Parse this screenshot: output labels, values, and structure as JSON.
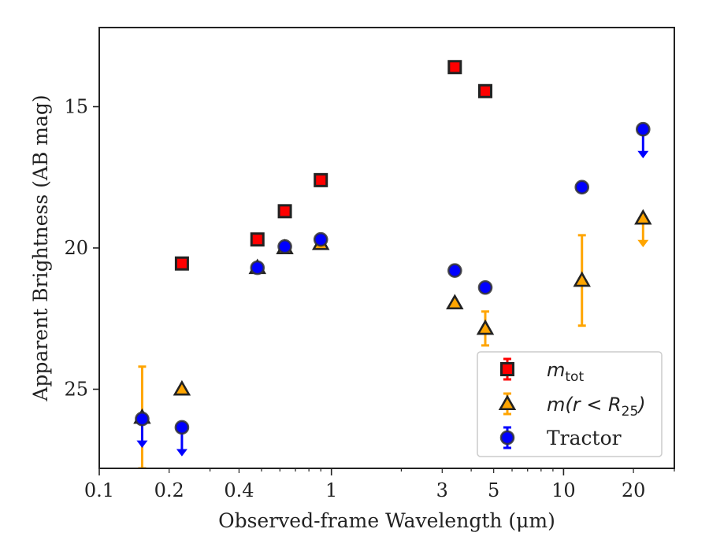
{
  "chart_data": {
    "type": "scatter",
    "title": "",
    "xlabel": "Observed-frame Wavelength (μm)",
    "ylabel": "Apparent Brightness (AB mag)",
    "xscale": "log",
    "xlim": [
      0.1,
      30
    ],
    "ylim": [
      12.2,
      27.8
    ],
    "y_inverted": true,
    "grid": false,
    "legend_position": "lower-right",
    "x_ticks": [
      {
        "value": 0.1,
        "label": "0.1"
      },
      {
        "value": 0.2,
        "label": "0.2"
      },
      {
        "value": 0.4,
        "label": "0.4"
      },
      {
        "value": 1,
        "label": "1"
      },
      {
        "value": 3,
        "label": "3"
      },
      {
        "value": 5,
        "label": "5"
      },
      {
        "value": 10,
        "label": "10"
      },
      {
        "value": 20,
        "label": "20"
      }
    ],
    "y_ticks": [
      {
        "value": 15,
        "label": "15"
      },
      {
        "value": 20,
        "label": "20"
      },
      {
        "value": 25,
        "label": "25"
      }
    ],
    "series": [
      {
        "name": "m_tot",
        "legend_main": "m",
        "legend_sub": "tot",
        "marker": "square",
        "color": "#ff0000",
        "edge_color": "#222222",
        "points": [
          {
            "x": 0.227,
            "y": 20.55
          },
          {
            "x": 0.48,
            "y": 19.7
          },
          {
            "x": 0.63,
            "y": 18.7
          },
          {
            "x": 0.9,
            "y": 17.6
          },
          {
            "x": 3.4,
            "y": 13.6
          },
          {
            "x": 4.6,
            "y": 14.45
          }
        ]
      },
      {
        "name": "m(r < R25)",
        "legend_main": "m(r < R",
        "legend_sub": "25",
        "legend_tail": ")",
        "marker": "triangle",
        "color": "#ffa500",
        "edge_color": "#222222",
        "points": [
          {
            "x": 0.153,
            "y": 26.0,
            "yerr_low": 1.8,
            "yerr_high": 1.8
          },
          {
            "x": 0.227,
            "y": 25.0
          },
          {
            "x": 0.48,
            "y": 20.7
          },
          {
            "x": 0.63,
            "y": 20.0
          },
          {
            "x": 0.9,
            "y": 19.85
          },
          {
            "x": 3.4,
            "y": 21.95
          },
          {
            "x": 4.6,
            "y": 22.85,
            "yerr_low": 0.6,
            "yerr_high": 0.6
          },
          {
            "x": 12.0,
            "y": 21.15,
            "yerr_low": 1.6,
            "yerr_high": 1.6
          },
          {
            "x": 22.0,
            "y": 18.95,
            "upper_limit": true
          }
        ]
      },
      {
        "name": "Tractor",
        "legend_main": "Tractor",
        "marker": "circle",
        "color": "#0000ff",
        "edge_color": "#333333",
        "points": [
          {
            "x": 0.153,
            "y": 26.05,
            "upper_limit": true
          },
          {
            "x": 0.227,
            "y": 26.35,
            "upper_limit": true
          },
          {
            "x": 0.48,
            "y": 20.7
          },
          {
            "x": 0.63,
            "y": 19.95
          },
          {
            "x": 0.9,
            "y": 19.7
          },
          {
            "x": 3.4,
            "y": 20.8
          },
          {
            "x": 4.6,
            "y": 21.4
          },
          {
            "x": 12.0,
            "y": 17.85
          },
          {
            "x": 22.0,
            "y": 15.8,
            "upper_limit": true
          }
        ]
      }
    ]
  }
}
